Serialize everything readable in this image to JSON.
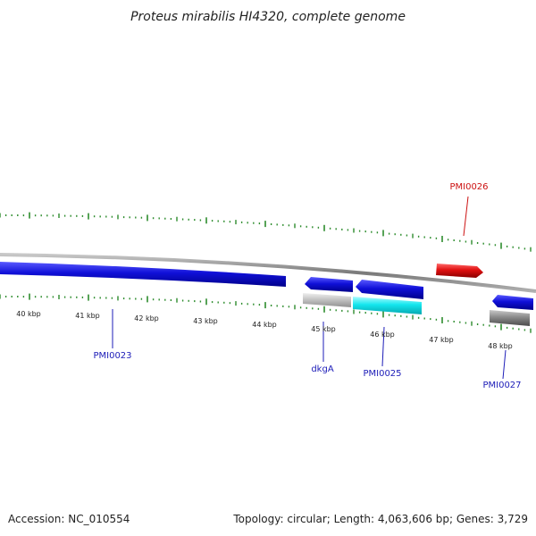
{
  "title": "Proteus mirabilis HI4320, complete genome",
  "accession": "Accession: NC_010554",
  "summary": "Topology: circular; Length: 4,063,606 bp; Genes: 3,729",
  "colors": {
    "backbone": "#8c8c8c",
    "tick": "#2d8c2d",
    "forward_gene": "#e01010",
    "reverse_gene": "#1010d8",
    "label_reverse": "#1c1cb8",
    "label_forward": "#cc1111",
    "cyan_feature": "#14e6ee",
    "gray_feature": "#8a8a8a",
    "lightgray_feature": "#c4c4c4"
  },
  "scale_labels": [
    "40 kbp",
    "41 kbp",
    "42 kbp",
    "43 kbp",
    "44 kbp",
    "45 kbp",
    "46 kbp",
    "47 kbp",
    "48 kbp"
  ],
  "genes": [
    {
      "name": "PMI0023",
      "strand": "reverse",
      "color": "reverse_gene"
    },
    {
      "name": "dkgA",
      "strand": "reverse",
      "color": "reverse_gene"
    },
    {
      "name": "PMI0025",
      "strand": "reverse",
      "color": "reverse_gene"
    },
    {
      "name": "PMI0026",
      "strand": "forward",
      "color": "forward_gene"
    },
    {
      "name": "PMI0027",
      "strand": "reverse",
      "color": "reverse_gene"
    }
  ]
}
